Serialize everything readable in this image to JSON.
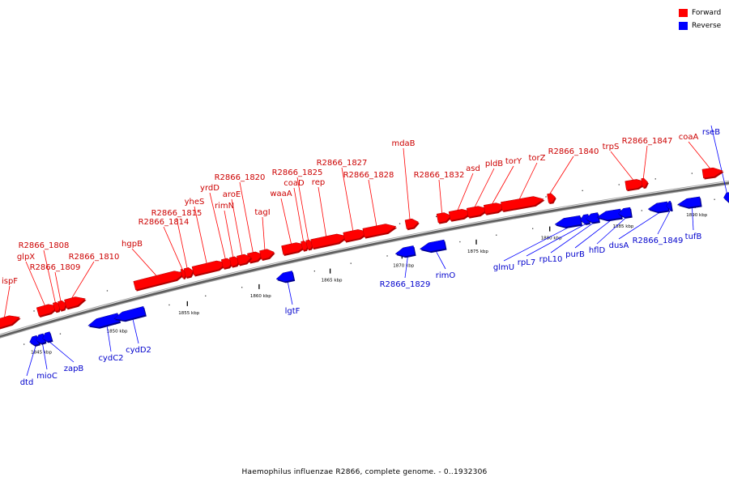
{
  "legend": {
    "forward_label": "Forward",
    "reverse_label": "Reverse",
    "forward_color": "#ff0000",
    "reverse_color": "#0000ff"
  },
  "caption": "Haemophilus influenzae R2866, complete genome. - 0..1932306",
  "genome": {
    "name": "Haemophilus influenzae R2866, complete genome.",
    "range": "0..1932306"
  },
  "ticks": [
    "1845 kbp",
    "1850 kbp",
    "1855 kbp",
    "1860 kbp",
    "1865 kbp",
    "1870 kbp",
    "1875 kbp",
    "1880 kbp",
    "1885 kbp",
    "1890 kbp"
  ],
  "forward_genes": [
    "ispF",
    "glpX",
    "R2866_1808",
    "R2866_1809",
    "R2866_1810",
    "hgpB",
    "R2866_1814",
    "R2866_1815",
    "yheS",
    "yrdD",
    "rimN",
    "R2866_1820",
    "aroE",
    "tagI",
    "waaA",
    "coaD",
    "R2866_1825",
    "rep",
    "R2866_1827",
    "R2866_1828",
    "mdaB",
    "R2866_1832",
    "asd",
    "pldB",
    "torY",
    "torZ",
    "R2866_1840",
    "trpS",
    "R2866_1847",
    "coaA"
  ],
  "reverse_genes": [
    "dtd",
    "mioC",
    "zapB",
    "cydC2",
    "cydD2",
    "lgtF",
    "R2866_1829",
    "rimO",
    "glmU",
    "rpL7",
    "rpL10",
    "purB",
    "hflD",
    "dusA",
    "R2866_1849",
    "tufB",
    "rseB"
  ]
}
